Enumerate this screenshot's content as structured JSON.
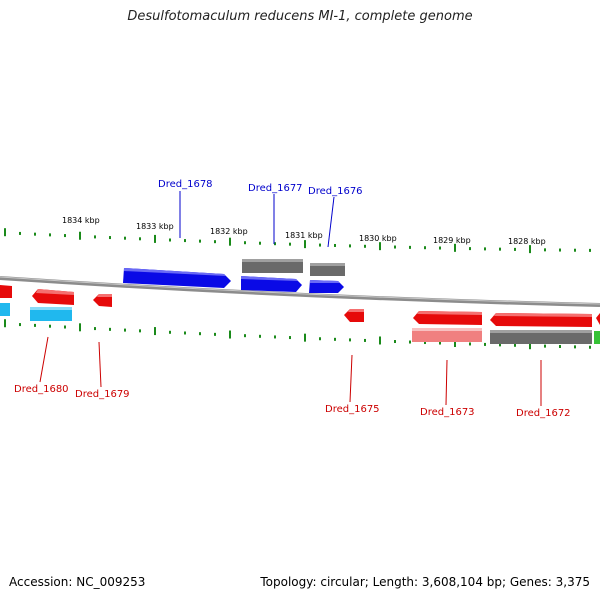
{
  "title": "Desulfotomaculum reducens MI-1, complete genome",
  "footer": {
    "accession": "Accession: NC_009253",
    "summary": "Topology: circular; Length: 3,608,104 bp; Genes: 3,375"
  },
  "colors": {
    "forward": "#0a0ae6",
    "reverse": "#e60a0a",
    "gray": "#6a6a6a",
    "cyan": "#20b8ee",
    "pink": "#f08080",
    "green": "#36c236",
    "tick": "#1a8a1a",
    "backbone": "#8c8c8c",
    "label_forward": "#0000cc",
    "label_reverse": "#cc0000"
  },
  "scale": {
    "top_labels": [
      "1834 kbp",
      "1833 kbp",
      "1832 kbp",
      "1831 kbp",
      "1830 kbp",
      "1829 kbp",
      "1828 kbp"
    ]
  },
  "genes": [
    {
      "name": "Dred_1678",
      "strand": "forward"
    },
    {
      "name": "Dred_1677",
      "strand": "forward"
    },
    {
      "name": "Dred_1676",
      "strand": "forward"
    },
    {
      "name": "Dred_1680",
      "strand": "reverse"
    },
    {
      "name": "Dred_1679",
      "strand": "reverse"
    },
    {
      "name": "Dred_1675",
      "strand": "reverse"
    },
    {
      "name": "Dred_1673",
      "strand": "reverse"
    },
    {
      "name": "Dred_1672",
      "strand": "reverse"
    }
  ]
}
